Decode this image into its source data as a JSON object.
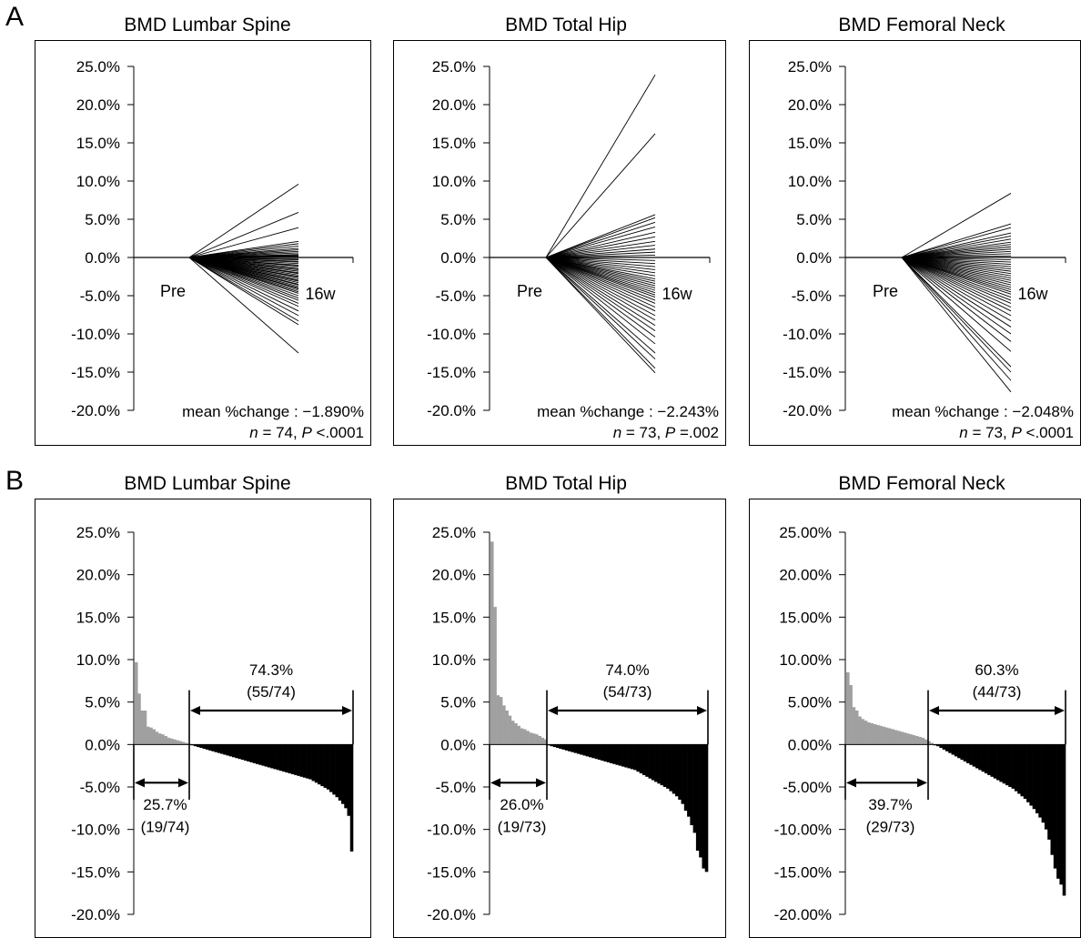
{
  "figure": {
    "panel_a_label": "A",
    "panel_b_label": "B"
  },
  "colors": {
    "line": "#000000",
    "gain_bar": "#a0a0a0",
    "loss_bar": "#000000"
  },
  "chart_data": [
    {
      "type": "line",
      "panel": "A",
      "title": "BMD Lumbar Spine",
      "x": [
        "Pre",
        "16w"
      ],
      "y_unit": "%",
      "ylim": [
        -20,
        25
      ],
      "yticks": [
        "25.0%",
        "20.0%",
        "15.0%",
        "10.0%",
        "5.0%",
        "0.0%",
        "-5.0%",
        "-10.0%",
        "-15.0%",
        "-20.0%"
      ],
      "x_labels": [
        "Pre",
        "16w"
      ],
      "annotation_line1": "mean %change : −1.890%",
      "annotation_line2": {
        "n_label": "n",
        "n_value": " = 74, ",
        "p_label": "P",
        "p_value": " <.0001"
      },
      "endpoints": [
        9.6,
        5.9,
        3.9,
        2.1,
        1.8,
        1.5,
        1.2,
        1.0,
        0.8,
        0.6,
        0.4,
        0.3,
        0.2,
        0.1,
        0.0,
        -0.2,
        -0.3,
        -0.5,
        -0.6,
        -0.8,
        -1.0,
        -1.1,
        -1.3,
        -1.5,
        -1.6,
        -1.8,
        -2.0,
        -2.1,
        -2.3,
        -2.5,
        -2.6,
        -2.8,
        -3.0,
        -3.1,
        -3.3,
        -3.5,
        -3.6,
        -3.8,
        -4.0,
        -4.1,
        -4.3,
        -4.5,
        -4.7,
        -5.0,
        -5.3,
        -5.6,
        -6.0,
        -6.4,
        -7.0,
        -7.6,
        -8.3,
        -8.8,
        -12.5
      ]
    },
    {
      "type": "line",
      "panel": "A",
      "title": "BMD Total Hip",
      "x": [
        "Pre",
        "16w"
      ],
      "y_unit": "%",
      "ylim": [
        -20,
        25
      ],
      "yticks": [
        "25.0%",
        "20.0%",
        "15.0%",
        "10.0%",
        "5.0%",
        "0.0%",
        "-5.0%",
        "-10.0%",
        "-15.0%",
        "-20.0%"
      ],
      "x_labels": [
        "Pre",
        "16w"
      ],
      "annotation_line1": "mean %change : −2.243%",
      "annotation_line2": {
        "n_label": "n",
        "n_value": " = 73, ",
        "p_label": "P",
        "p_value": " =.002"
      },
      "endpoints": [
        23.9,
        16.2,
        5.6,
        5.2,
        4.6,
        4.0,
        3.3,
        2.7,
        2.1,
        1.6,
        1.1,
        0.7,
        0.3,
        0.0,
        -0.4,
        -0.8,
        -1.2,
        -1.6,
        -2.0,
        -2.4,
        -2.8,
        -3.1,
        -3.4,
        -3.7,
        -4.0,
        -4.3,
        -4.6,
        -4.9,
        -5.2,
        -5.6,
        -6.0,
        -6.5,
        -7.0,
        -7.6,
        -8.2,
        -8.9,
        -9.6,
        -10.4,
        -11.3,
        -12.5,
        -13.3,
        -14.5,
        -15.1
      ]
    },
    {
      "type": "line",
      "panel": "A",
      "title": "BMD Femoral Neck",
      "x": [
        "Pre",
        "16w"
      ],
      "y_unit": "%",
      "ylim": [
        -20,
        25
      ],
      "yticks": [
        "25.0%",
        "20.0%",
        "15.0%",
        "10.0%",
        "5.0%",
        "0.0%",
        "-5.0%",
        "-10.0%",
        "-15.0%",
        "-20.0%"
      ],
      "x_labels": [
        "Pre",
        "16w"
      ],
      "annotation_line1": "mean %change : −2.048%",
      "annotation_line2": {
        "n_label": "n",
        "n_value": " = 73, ",
        "p_label": "P",
        "p_value": " <.0001"
      },
      "endpoints": [
        8.4,
        4.4,
        3.9,
        3.2,
        2.8,
        2.4,
        2.0,
        1.7,
        1.4,
        1.1,
        0.8,
        0.5,
        0.2,
        0.0,
        -0.3,
        -0.6,
        -0.9,
        -1.2,
        -1.5,
        -1.8,
        -2.1,
        -2.4,
        -2.7,
        -3.0,
        -3.3,
        -3.6,
        -3.9,
        -4.2,
        -4.5,
        -4.8,
        -5.2,
        -5.6,
        -6.0,
        -6.5,
        -7.0,
        -7.6,
        -8.3,
        -9.1,
        -10.0,
        -11.0,
        -12.3,
        -14.3,
        -15.0,
        -16.1,
        -17.6
      ]
    },
    {
      "type": "bar",
      "panel": "B",
      "title": "BMD Lumbar Spine",
      "y_unit": "%",
      "ylim": [
        -20,
        25
      ],
      "yticks": [
        "25.0%",
        "20.0%",
        "15.0%",
        "10.0%",
        "5.0%",
        "0.0%",
        "-5.0%",
        "-10.0%",
        "-15.0%",
        "-20.0%"
      ],
      "n_total": 74,
      "n_gain": 19,
      "gain_label": [
        "25.7%",
        "(19/74)"
      ],
      "loss_label": [
        "74.3%",
        "(55/74)"
      ],
      "values": [
        9.7,
        6.0,
        4.0,
        4.0,
        2.1,
        2.0,
        1.8,
        1.5,
        1.3,
        1.2,
        1.0,
        0.8,
        0.7,
        0.6,
        0.5,
        0.4,
        0.3,
        0.2,
        0.1,
        -0.1,
        -0.2,
        -0.3,
        -0.4,
        -0.5,
        -0.6,
        -0.7,
        -0.8,
        -0.9,
        -1.0,
        -1.1,
        -1.2,
        -1.3,
        -1.4,
        -1.5,
        -1.6,
        -1.7,
        -1.8,
        -1.9,
        -2.0,
        -2.1,
        -2.2,
        -2.3,
        -2.4,
        -2.5,
        -2.6,
        -2.7,
        -2.8,
        -2.9,
        -3.0,
        -3.1,
        -3.2,
        -3.3,
        -3.4,
        -3.5,
        -3.6,
        -3.7,
        -3.8,
        -3.9,
        -4.0,
        -4.1,
        -4.3,
        -4.5,
        -4.7,
        -4.9,
        -5.1,
        -5.3,
        -5.6,
        -5.9,
        -6.2,
        -6.6,
        -7.0,
        -7.5,
        -8.4,
        -12.6
      ]
    },
    {
      "type": "bar",
      "panel": "B",
      "title": "BMD Total Hip",
      "y_unit": "%",
      "ylim": [
        -20,
        25
      ],
      "yticks": [
        "25.0%",
        "20.0%",
        "15.0%",
        "10.0%",
        "5.0%",
        "0.0%",
        "-5.0%",
        "-10.0%",
        "-15.0%",
        "-20.0%"
      ],
      "n_total": 73,
      "n_gain": 19,
      "gain_label": [
        "26.0%",
        "(19/73)"
      ],
      "loss_label": [
        "74.0%",
        "(54/73)"
      ],
      "values": [
        23.9,
        16.2,
        5.8,
        5.6,
        4.6,
        4.0,
        3.4,
        2.8,
        2.5,
        2.2,
        1.9,
        1.8,
        1.6,
        1.4,
        1.3,
        1.2,
        1.0,
        0.8,
        0.6,
        -0.1,
        -0.2,
        -0.3,
        -0.4,
        -0.5,
        -0.6,
        -0.7,
        -0.8,
        -0.9,
        -1.0,
        -1.1,
        -1.2,
        -1.3,
        -1.4,
        -1.5,
        -1.6,
        -1.7,
        -1.8,
        -1.9,
        -2.0,
        -2.1,
        -2.2,
        -2.3,
        -2.4,
        -2.5,
        -2.6,
        -2.7,
        -2.8,
        -2.9,
        -3.0,
        -3.2,
        -3.4,
        -3.6,
        -3.8,
        -4.0,
        -4.2,
        -4.4,
        -4.6,
        -4.8,
        -5.0,
        -5.2,
        -5.5,
        -5.8,
        -6.1,
        -6.5,
        -7.0,
        -7.8,
        -8.5,
        -9.5,
        -10.4,
        -12.5,
        -13.3,
        -14.6,
        -15.0
      ]
    },
    {
      "type": "bar",
      "panel": "B",
      "title": "BMD Femoral Neck",
      "y_unit": "%",
      "ylim": [
        -20,
        25
      ],
      "yticks": [
        "25.00%",
        "20.00%",
        "15.00%",
        "10.00%",
        "5.00%",
        "0.00%",
        "-5.00%",
        "-10.00%",
        "-15.00%",
        "-20.00%"
      ],
      "n_total": 73,
      "n_gain": 29,
      "gain_label": [
        "39.7%",
        "(29/73)"
      ],
      "loss_label": [
        "60.3%",
        "(44/73)"
      ],
      "values": [
        8.5,
        7.0,
        4.4,
        4.0,
        3.3,
        3.0,
        2.8,
        2.6,
        2.5,
        2.4,
        2.3,
        2.2,
        2.1,
        2.0,
        1.9,
        1.8,
        1.7,
        1.6,
        1.5,
        1.4,
        1.3,
        1.2,
        1.1,
        1.0,
        0.9,
        0.8,
        0.6,
        0.4,
        0.2,
        -0.1,
        -0.2,
        -0.4,
        -0.6,
        -0.8,
        -1.0,
        -1.2,
        -1.4,
        -1.6,
        -1.8,
        -2.0,
        -2.2,
        -2.4,
        -2.6,
        -2.8,
        -3.0,
        -3.2,
        -3.4,
        -3.6,
        -3.8,
        -4.0,
        -4.2,
        -4.4,
        -4.6,
        -4.8,
        -5.0,
        -5.2,
        -5.5,
        -5.8,
        -6.1,
        -6.4,
        -6.8,
        -7.2,
        -7.6,
        -8.1,
        -8.6,
        -9.2,
        -10.0,
        -11.2,
        -13.0,
        -14.6,
        -15.8,
        -16.5,
        -17.8
      ]
    }
  ]
}
